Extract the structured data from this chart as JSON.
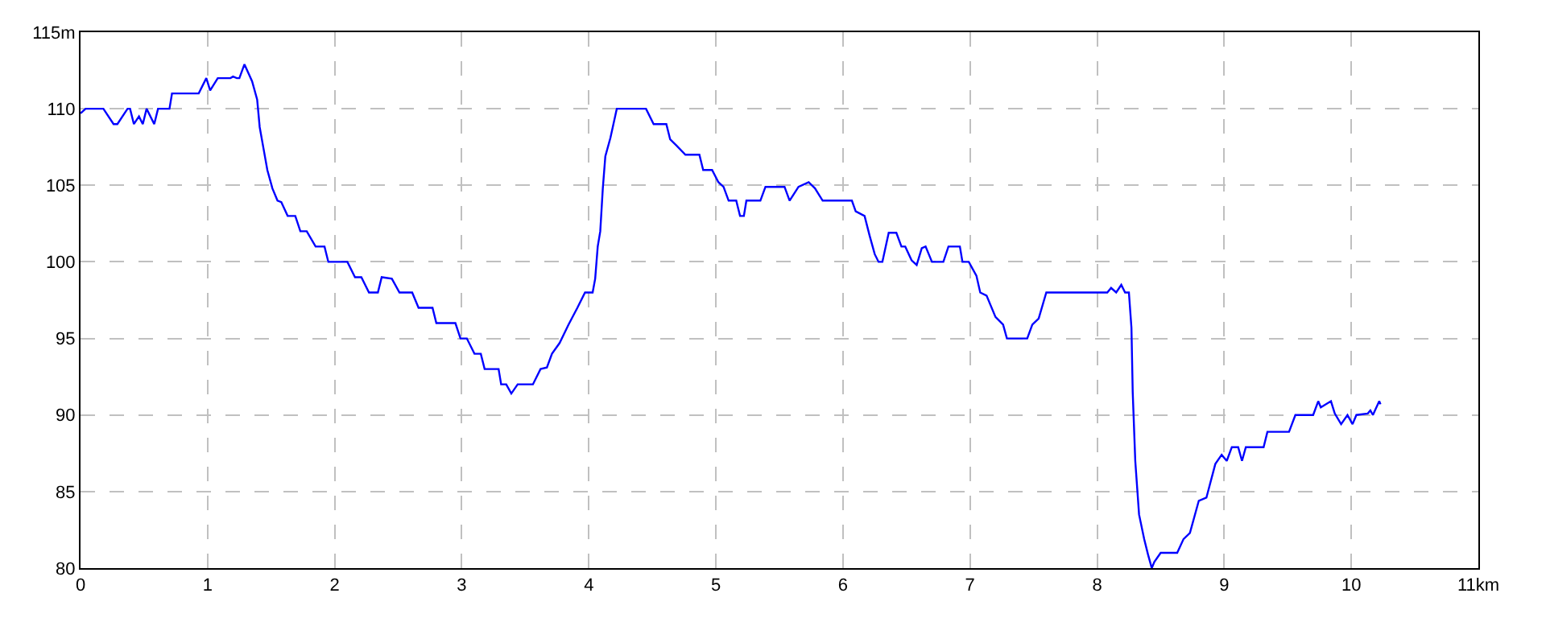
{
  "chart_data": {
    "type": "line",
    "grid": true,
    "line_style": "solid",
    "xlim": [
      0,
      11
    ],
    "ylim": [
      80,
      115
    ],
    "xticks": [
      0,
      1,
      2,
      3,
      4,
      5,
      6,
      7,
      8,
      9,
      10,
      {
        "value": 11,
        "label": "11km"
      }
    ],
    "yticks": [
      80,
      85,
      90,
      95,
      100,
      105,
      110,
      {
        "value": 115,
        "label": "115m"
      }
    ],
    "series": [
      {
        "color": "#0000ff",
        "x": [
          0,
          0.04,
          0.18,
          0.26,
          0.29,
          0.37,
          0.39,
          0.42,
          0.46,
          0.49,
          0.52,
          0.58,
          0.61,
          0.7,
          0.72,
          0.93,
          0.99,
          1.02,
          1.08,
          1.18,
          1.2,
          1.23,
          1.25,
          1.29,
          1.35,
          1.39,
          1.41,
          1.44,
          1.47,
          1.51,
          1.55,
          1.58,
          1.63,
          1.69,
          1.73,
          1.78,
          1.85,
          1.92,
          1.95,
          2.1,
          2.16,
          2.21,
          2.27,
          2.34,
          2.37,
          2.45,
          2.51,
          2.61,
          2.66,
          2.77,
          2.8,
          2.95,
          2.99,
          3.04,
          3.1,
          3.15,
          3.18,
          3.29,
          3.31,
          3.35,
          3.39,
          3.44,
          3.56,
          3.62,
          3.67,
          3.71,
          3.77,
          3.84,
          3.91,
          3.97,
          4.03,
          4.05,
          4.07,
          4.09,
          4.11,
          4.13,
          4.17,
          4.22,
          4.45,
          4.51,
          4.61,
          4.64,
          4.69,
          4.76,
          4.87,
          4.9,
          4.97,
          5.02,
          5.06,
          5.1,
          5.16,
          5.19,
          5.22,
          5.24,
          5.35,
          5.39,
          5.54,
          5.58,
          5.65,
          5.73,
          5.78,
          5.84,
          6.07,
          6.1,
          6.17,
          6.21,
          6.25,
          6.28,
          6.31,
          6.36,
          6.42,
          6.46,
          6.49,
          6.54,
          6.58,
          6.62,
          6.65,
          6.7,
          6.79,
          6.83,
          6.92,
          6.94,
          6.99,
          7.05,
          7.08,
          7.13,
          7.2,
          7.26,
          7.29,
          7.45,
          7.49,
          7.54,
          7.6,
          8.08,
          8.11,
          8.15,
          8.19,
          8.22,
          8.25,
          8.27,
          8.28,
          8.3,
          8.33,
          8.37,
          8.4,
          8.43,
          8.45,
          8.5,
          8.63,
          8.68,
          8.73,
          8.8,
          8.86,
          8.93,
          8.98,
          9.02,
          9.06,
          9.11,
          9.14,
          9.17,
          9.31,
          9.34,
          9.51,
          9.56,
          9.7,
          9.74,
          9.76,
          9.84,
          9.87,
          9.92,
          9.97,
          10.01,
          10.04,
          10.13,
          10.15,
          10.17,
          10.22,
          10.23
        ],
        "values": [
          109.7,
          110,
          110,
          109,
          109,
          110,
          110,
          109,
          109.5,
          109,
          110,
          109,
          110,
          110,
          111,
          111,
          112,
          111.2,
          112,
          112,
          112.1,
          112,
          112,
          112.9,
          111.8,
          110.6,
          108.8,
          107.4,
          106,
          104.8,
          104,
          103.9,
          103,
          103,
          102,
          102,
          101,
          101,
          100,
          100,
          99,
          99,
          98,
          98,
          99,
          98.9,
          98,
          98,
          97,
          97,
          96,
          96,
          95,
          95,
          94,
          94,
          93,
          93,
          92,
          92,
          91.4,
          92,
          92,
          93,
          93.1,
          94,
          94.7,
          95.9,
          97,
          98,
          98,
          98.9,
          101,
          102,
          104.8,
          106.9,
          108.1,
          110,
          110,
          109,
          109,
          108,
          107.6,
          107,
          107,
          106,
          106,
          105.2,
          104.9,
          104,
          104,
          103,
          103,
          104,
          104,
          104.9,
          104.9,
          104,
          104.9,
          105.2,
          104.8,
          104,
          104,
          103.3,
          103,
          101.7,
          100.5,
          100,
          100,
          101.9,
          101.9,
          101,
          101,
          100.1,
          99.8,
          100.9,
          101,
          100,
          100,
          101,
          101,
          100,
          100,
          99.1,
          98,
          97.8,
          96.4,
          95.9,
          95,
          95,
          95.9,
          96.3,
          98,
          98,
          98.3,
          98,
          98.5,
          98,
          98,
          95.7,
          91.5,
          87,
          83.5,
          81.9,
          80.9,
          80,
          80.4,
          81,
          81,
          81.9,
          82.3,
          84.4,
          84.6,
          86.8,
          87.4,
          87,
          87.9,
          87.9,
          87,
          87.9,
          87.9,
          88.9,
          88.9,
          90,
          90,
          90.9,
          90.5,
          90.9,
          90.1,
          89.4,
          90,
          89.4,
          90,
          90.1,
          90.3,
          90,
          90.9,
          90.7
        ]
      }
    ]
  }
}
